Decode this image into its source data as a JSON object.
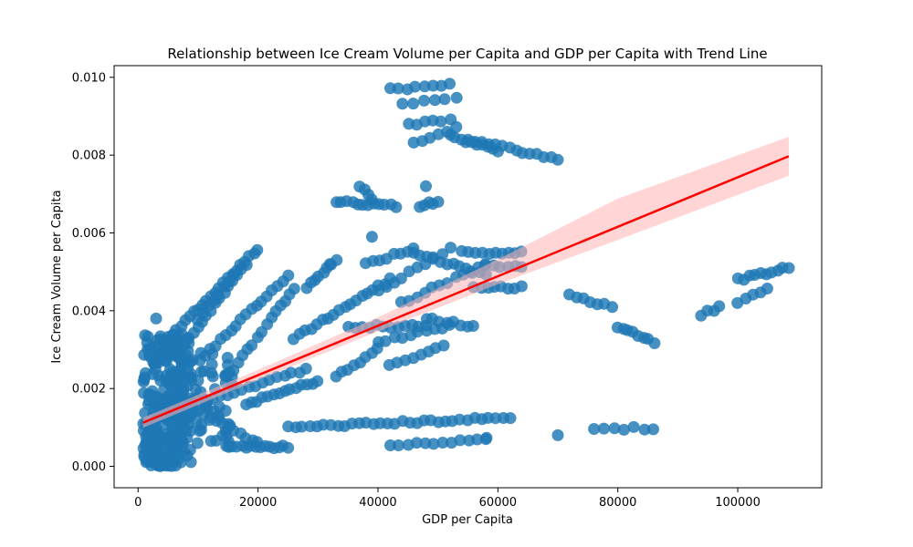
{
  "chart_data": {
    "type": "scatter",
    "title": "Relationship between Ice Cream Volume per Capita and GDP per Capita with Trend Line",
    "xlabel": "GDP per Capita",
    "ylabel": "Ice Cream Volume per Capita",
    "xlim": [
      -4000,
      114000
    ],
    "ylim": [
      -0.00055,
      0.0103
    ],
    "x_ticks": [
      {
        "value": 0,
        "label": "0"
      },
      {
        "value": 20000,
        "label": "20000"
      },
      {
        "value": 40000,
        "label": "40000"
      },
      {
        "value": 60000,
        "label": "60000"
      },
      {
        "value": 80000,
        "label": "80000"
      },
      {
        "value": 100000,
        "label": "100000"
      }
    ],
    "y_ticks": [
      {
        "value": 0.0,
        "label": "0.000"
      },
      {
        "value": 0.002,
        "label": "0.002"
      },
      {
        "value": 0.004,
        "label": "0.004"
      },
      {
        "value": 0.006,
        "label": "0.006"
      },
      {
        "value": 0.008,
        "label": "0.008"
      },
      {
        "value": 0.01,
        "label": "0.010"
      }
    ],
    "grid": false,
    "legend": "none",
    "colors": {
      "points": "#1f77b4",
      "trend": "#ff0000",
      "band": "#ffb3b3"
    },
    "trend_line": {
      "x": [
        800,
        108500
      ],
      "y": [
        0.00112,
        0.00797
      ]
    },
    "confidence_band": {
      "x": [
        800,
        20000,
        40000,
        60000,
        80000,
        108500
      ],
      "upper": [
        0.00125,
        0.00248,
        0.00383,
        0.00532,
        0.00688,
        0.00847
      ],
      "lower": [
        0.00099,
        0.00222,
        0.00347,
        0.00468,
        0.00582,
        0.00747
      ]
    },
    "series": [
      {
        "name": "",
        "clusters": [
          {
            "x": [
              800,
              9000
            ],
            "y": [
              0.0,
              0.0034
            ],
            "n": 240
          },
          {
            "x": [
              1000,
              6000
            ],
            "y": [
              0.0,
              0.0008
            ],
            "n": 60
          },
          {
            "x": [
              4000,
              16000
            ],
            "y": [
              0.0005,
              0.003
            ],
            "n": 80
          }
        ],
        "segments": [
          {
            "x1": 5000,
            "y1": 0.0033,
            "x2": 20000,
            "y2": 0.0056,
            "n": 22
          },
          {
            "x1": 7000,
            "y1": 0.003,
            "x2": 18000,
            "y2": 0.0052,
            "n": 16
          },
          {
            "x1": 10000,
            "y1": 0.0038,
            "x2": 16000,
            "y2": 0.0049,
            "n": 8
          },
          {
            "x1": 12000,
            "y1": 0.003,
            "x2": 25000,
            "y2": 0.0049,
            "n": 16
          },
          {
            "x1": 16000,
            "y1": 0.0025,
            "x2": 26000,
            "y2": 0.0046,
            "n": 14
          },
          {
            "x1": 10000,
            "y1": 0.0016,
            "x2": 28000,
            "y2": 0.0025,
            "n": 16
          },
          {
            "x1": 18000,
            "y1": 0.0016,
            "x2": 30000,
            "y2": 0.0022,
            "n": 14
          },
          {
            "x1": 15000,
            "y1": 0.0005,
            "x2": 25000,
            "y2": 0.0005,
            "n": 14
          },
          {
            "x1": 9000,
            "y1": 0.0015,
            "x2": 20000,
            "y2": 0.0006,
            "n": 12
          },
          {
            "x1": 25000,
            "y1": 0.001,
            "x2": 62000,
            "y2": 0.00125,
            "n": 32
          },
          {
            "x1": 26000,
            "y1": 0.0033,
            "x2": 42000,
            "y2": 0.0048,
            "n": 18
          },
          {
            "x1": 28000,
            "y1": 0.0046,
            "x2": 33000,
            "y2": 0.0053,
            "n": 8
          },
          {
            "x1": 33000,
            "y1": 0.0068,
            "x2": 43000,
            "y2": 0.0067,
            "n": 12
          },
          {
            "x1": 37000,
            "y1": 0.0072,
            "x2": 39000,
            "y2": 0.0069,
            "n": 4
          },
          {
            "x1": 33000,
            "y1": 0.0023,
            "x2": 40000,
            "y2": 0.003,
            "n": 8
          },
          {
            "x1": 35000,
            "y1": 0.0036,
            "x2": 48000,
            "y2": 0.0036,
            "n": 12
          },
          {
            "x1": 38000,
            "y1": 0.0052,
            "x2": 46000,
            "y2": 0.0056,
            "n": 8
          },
          {
            "x1": 40000,
            "y1": 0.0045,
            "x2": 52000,
            "y2": 0.0056,
            "n": 10
          },
          {
            "x1": 44000,
            "y1": 0.0042,
            "x2": 58000,
            "y2": 0.0052,
            "n": 12
          },
          {
            "x1": 46000,
            "y1": 0.0055,
            "x2": 58000,
            "y2": 0.0049,
            "n": 12
          },
          {
            "x1": 40000,
            "y1": 0.0032,
            "x2": 52000,
            "y2": 0.0036,
            "n": 10
          },
          {
            "x1": 42000,
            "y1": 0.0026,
            "x2": 51000,
            "y2": 0.0031,
            "n": 8
          },
          {
            "x1": 47000,
            "y1": 0.0067,
            "x2": 50000,
            "y2": 0.0068,
            "n": 5
          },
          {
            "x1": 48000,
            "y1": 0.0038,
            "x2": 56000,
            "y2": 0.0036,
            "n": 8
          },
          {
            "x1": 42000,
            "y1": 0.00055,
            "x2": 58000,
            "y2": 0.0007,
            "n": 12
          },
          {
            "x1": 42000,
            "y1": 0.0097,
            "x2": 52000,
            "y2": 0.0098,
            "n": 8
          },
          {
            "x1": 44000,
            "y1": 0.0093,
            "x2": 53000,
            "y2": 0.0095,
            "n": 6
          },
          {
            "x1": 45000,
            "y1": 0.0088,
            "x2": 52000,
            "y2": 0.0089,
            "n": 6
          },
          {
            "x1": 46000,
            "y1": 0.0083,
            "x2": 53000,
            "y2": 0.0087,
            "n": 6
          },
          {
            "x1": 52000,
            "y1": 0.0085,
            "x2": 60000,
            "y2": 0.0081,
            "n": 10
          },
          {
            "x1": 55000,
            "y1": 0.0084,
            "x2": 70000,
            "y2": 0.0079,
            "n": 14
          },
          {
            "x1": 54000,
            "y1": 0.0055,
            "x2": 64000,
            "y2": 0.0055,
            "n": 10
          },
          {
            "x1": 56000,
            "y1": 0.0046,
            "x2": 64000,
            "y2": 0.0046,
            "n": 8
          },
          {
            "x1": 58000,
            "y1": 0.0052,
            "x2": 64000,
            "y2": 0.0051,
            "n": 6
          },
          {
            "x1": 72000,
            "y1": 0.0044,
            "x2": 79000,
            "y2": 0.0041,
            "n": 7
          },
          {
            "x1": 80000,
            "y1": 0.0036,
            "x2": 86000,
            "y2": 0.0032,
            "n": 8
          },
          {
            "x1": 76000,
            "y1": 0.00098,
            "x2": 86000,
            "y2": 0.00098,
            "n": 7
          },
          {
            "x1": 94000,
            "y1": 0.0039,
            "x2": 97000,
            "y2": 0.0041,
            "n": 4
          },
          {
            "x1": 100000,
            "y1": 0.0048,
            "x2": 108500,
            "y2": 0.0051,
            "n": 10
          },
          {
            "x1": 100000,
            "y1": 0.0042,
            "x2": 105000,
            "y2": 0.0046,
            "n": 5
          }
        ],
        "points": [
          {
            "x": 3000,
            "y": 0.0038
          },
          {
            "x": 39000,
            "y": 0.0059
          },
          {
            "x": 70000,
            "y": 0.0008
          },
          {
            "x": 58000,
            "y": 0.0007
          },
          {
            "x": 48000,
            "y": 0.0072
          },
          {
            "x": 32000,
            "y": 0.0052
          }
        ]
      }
    ]
  }
}
